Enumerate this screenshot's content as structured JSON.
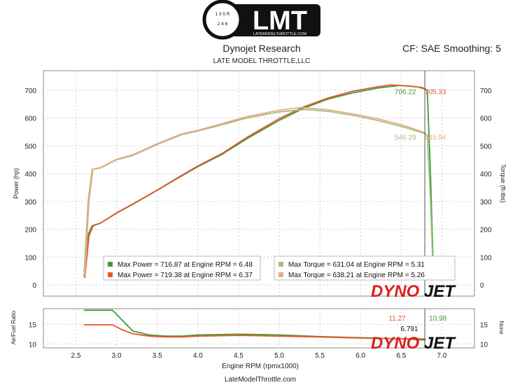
{
  "header": {
    "logo_text": "LMT",
    "logo_url": "LATEMODELTHROTTLE.COM",
    "shifter_top": "1 3 5 R",
    "shifter_bottom": "2 4 6",
    "title": "Dynojet Research",
    "subtitle": "LATE MODEL THROTTLE,LLC",
    "correction": "CF: SAE Smoothing: 5"
  },
  "footer": {
    "site": "LateModelThrottle.com"
  },
  "brand": {
    "left": "DYNO",
    "right": "JET"
  },
  "colors": {
    "power_run1": "#3f9a3c",
    "power_run2": "#e8572c",
    "torque_run1": "#9fc27f",
    "torque_run2": "#f0a88a",
    "afr_run1": "#3f9a3c",
    "afr_run2": "#e8572c",
    "brand_red": "#d8231e",
    "brand_black": "#111111"
  },
  "chart_data": [
    {
      "type": "line",
      "xlim": [
        2.1,
        7.4
      ],
      "ylim": [
        -40,
        770
      ],
      "ylabel": "Power (hp)",
      "y2label": "Torque (ft-lbs)",
      "xticks": [
        2.5,
        3.0,
        3.5,
        4.0,
        4.5,
        5.0,
        5.5,
        6.0,
        6.5,
        7.0
      ],
      "yticks": [
        0,
        100,
        200,
        300,
        400,
        500,
        600,
        700
      ],
      "grid": true,
      "legend": "bottom-left",
      "series": [
        {
          "name": "Max Power = 716.87 at Engine RPM = 6.48",
          "kind": "power",
          "color_key": "power_run1",
          "x": [
            2.6,
            2.65,
            2.7,
            2.8,
            3.0,
            3.2,
            3.5,
            3.8,
            4.0,
            4.3,
            4.6,
            5.0,
            5.3,
            5.6,
            5.9,
            6.2,
            6.48,
            6.7,
            6.77,
            6.82,
            6.86,
            6.89
          ],
          "y": [
            30,
            180,
            213,
            222,
            258,
            290,
            340,
            392,
            425,
            470,
            525,
            592,
            635,
            668,
            690,
            707,
            717,
            712,
            706,
            700,
            400,
            100
          ]
        },
        {
          "name": "Max Power = 719.38 at Engine RPM = 6.37",
          "kind": "power",
          "color_key": "power_run2",
          "x": [
            2.61,
            2.66,
            2.71,
            2.8,
            3.0,
            3.2,
            3.5,
            3.8,
            4.0,
            4.3,
            4.6,
            5.0,
            5.3,
            5.6,
            5.9,
            6.2,
            6.37,
            6.6,
            6.75,
            6.8
          ],
          "y": [
            25,
            175,
            212,
            222,
            259,
            291,
            341,
            394,
            428,
            473,
            530,
            598,
            640,
            672,
            696,
            712,
            719,
            715,
            710,
            705
          ]
        },
        {
          "name": "Max Torque = 631.04 at Engine RPM = 5.31",
          "kind": "torque",
          "color_key": "torque_run1",
          "x": [
            2.6,
            2.65,
            2.7,
            2.8,
            3.0,
            3.2,
            3.5,
            3.8,
            4.0,
            4.3,
            4.6,
            5.0,
            5.31,
            5.6,
            5.9,
            6.2,
            6.5,
            6.77,
            6.82,
            6.86,
            6.89
          ],
          "y": [
            35,
            300,
            415,
            420,
            450,
            465,
            505,
            540,
            553,
            576,
            600,
            622,
            631,
            624,
            610,
            592,
            570,
            546,
            540,
            300,
            60
          ]
        },
        {
          "name": "Max Torque = 638.21 at Engine RPM = 5.26",
          "kind": "torque",
          "color_key": "torque_run2",
          "x": [
            2.61,
            2.66,
            2.71,
            2.8,
            3.0,
            3.2,
            3.5,
            3.8,
            4.0,
            4.3,
            4.6,
            5.0,
            5.26,
            5.6,
            5.9,
            6.2,
            6.5,
            6.75,
            6.8
          ],
          "y": [
            30,
            300,
            416,
            422,
            452,
            468,
            508,
            543,
            556,
            580,
            605,
            628,
            638,
            630,
            615,
            598,
            576,
            552,
            546
          ]
        }
      ],
      "annotations": [
        {
          "text": "706.22",
          "x": 6.55,
          "y": 686,
          "color_key": "power_run1"
        },
        {
          "text": "705.33",
          "x": 6.92,
          "y": 686,
          "color_key": "power_run2"
        },
        {
          "text": "546.29",
          "x": 6.55,
          "y": 522,
          "color_key": "torque_run1"
        },
        {
          "text": "545.94",
          "x": 6.92,
          "y": 522,
          "color_key": "torque_run2"
        }
      ],
      "cursor_rpm": 6.79
    },
    {
      "type": "line",
      "xlim": [
        2.1,
        7.4
      ],
      "ylim": [
        9,
        19
      ],
      "ylabel": "Air/Fuel Ratio",
      "y2label": "None",
      "xlabel": "Engine RPM (rpmx1000)",
      "yticks": [
        10,
        15
      ],
      "grid": true,
      "series": [
        {
          "kind": "afr",
          "color_key": "afr_run1",
          "x": [
            2.6,
            2.8,
            2.95,
            3.05,
            3.2,
            3.4,
            3.6,
            3.8,
            4.0,
            4.5,
            5.0,
            5.5,
            6.0,
            6.5,
            6.8
          ],
          "y": [
            18.6,
            18.6,
            18.6,
            16.5,
            13.3,
            12.3,
            12.0,
            12.0,
            12.3,
            12.5,
            12.3,
            11.9,
            11.6,
            11.3,
            11.0
          ]
        },
        {
          "kind": "afr",
          "color_key": "afr_run2",
          "x": [
            2.6,
            2.8,
            2.95,
            3.05,
            3.2,
            3.4,
            3.6,
            3.8,
            4.0,
            4.5,
            5.0,
            5.5,
            6.0,
            6.5,
            6.8
          ],
          "y": [
            14.9,
            14.9,
            14.9,
            13.8,
            12.6,
            12.0,
            11.8,
            11.8,
            12.0,
            12.2,
            12.0,
            11.8,
            11.5,
            11.3,
            11.3
          ]
        }
      ],
      "annotations": [
        {
          "text": "11.27",
          "x": 6.45,
          "y": 16.0,
          "color_key": "afr_run2"
        },
        {
          "text": "10.98",
          "x": 6.95,
          "y": 16.0,
          "color_key": "afr_run1"
        },
        {
          "text": "6.791",
          "x": 6.6,
          "y": 13.3,
          "color_key": "brand_black"
        }
      ]
    }
  ]
}
